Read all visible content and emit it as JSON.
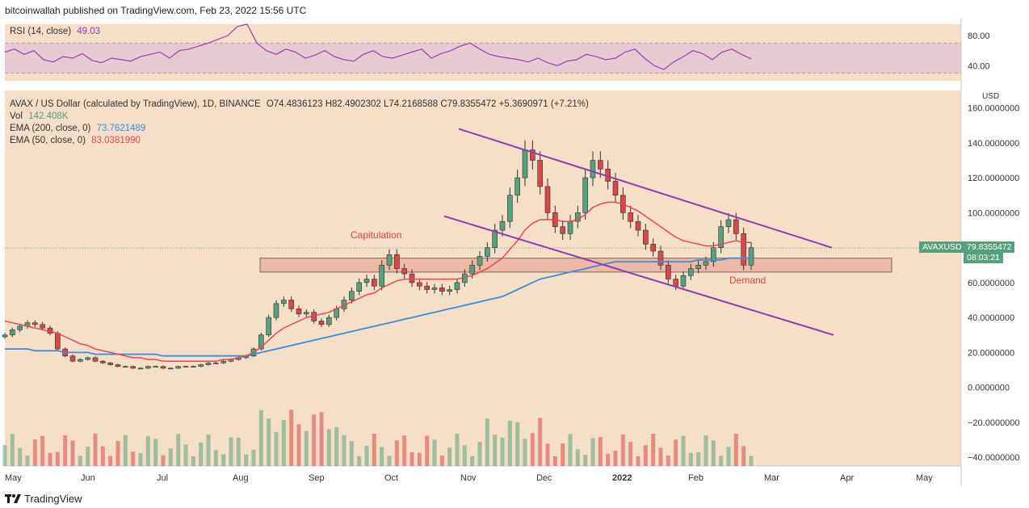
{
  "header": {
    "publisher": "bitcoinwallah published on TradingView.com, Feb 23, 2022 15:56 UTC"
  },
  "footer": {
    "brand": "TradingView",
    "logo": "tradingview-logo"
  },
  "rsi_legend": {
    "label": "RSI (14, close)",
    "value": "49.03"
  },
  "main_legend": {
    "title": "AVAX / US Dollar (calculated by TradingView), 1D, BINANCE",
    "ohlc": "O74.4836123  H82.4902302  L74.2168588  C79.8355472  +5.3690971 (+7.21%)",
    "vol_label": "Vol",
    "vol_value": "142.408K",
    "ema200_label": "EMA (200, close, 0)",
    "ema200_value": "73.7621489",
    "ema50_label": "EMA (50, close, 0)",
    "ema50_value": "83.0381990"
  },
  "price_tag": {
    "symbol": "AVAXUSD",
    "price": "79.8355472",
    "countdown": "08:03:21"
  },
  "annotations": {
    "capitulation": "Capitulation",
    "demand": "Demand"
  },
  "colors": {
    "background": "#f5dfc8",
    "up": "#57a07d",
    "down": "#d94848",
    "ema50": "#e8474f",
    "ema200": "#3b8de0",
    "rsi": "#9b3fb3",
    "channel": "#8b3fb0",
    "zone": "#e9a08f"
  },
  "chart_data": [
    {
      "type": "line",
      "name": "RSI (14, close)",
      "y_ticks": [
        "80.00",
        "40.00"
      ],
      "ylim": [
        20,
        95
      ],
      "band": [
        30,
        70
      ],
      "values": [
        58,
        62,
        55,
        60,
        48,
        45,
        52,
        50,
        56,
        47,
        44,
        50,
        48,
        46,
        52,
        55,
        58,
        50,
        60,
        62,
        66,
        70,
        75,
        80,
        92,
        95,
        70,
        60,
        55,
        62,
        58,
        50,
        54,
        60,
        52,
        48,
        46,
        55,
        60,
        52,
        50,
        54,
        58,
        62,
        50,
        56,
        60,
        66,
        70,
        62,
        55,
        52,
        50,
        48,
        45,
        50,
        44,
        40,
        46,
        48,
        55,
        52,
        48,
        50,
        58,
        62,
        50,
        40,
        35,
        45,
        52,
        60,
        56,
        48,
        58,
        62,
        55,
        49
      ]
    },
    {
      "type": "line",
      "name": "AVAX / US Dollar",
      "x_tick_labels": [
        "May",
        "Jun",
        "Jul",
        "Aug",
        "Sep",
        "Oct",
        "Nov",
        "Dec",
        "2022",
        "Feb",
        "Mar",
        "Apr",
        "May"
      ],
      "y_tick_labels": [
        "160.0000000",
        "140.0000000",
        "120.0000000",
        "100.0000000",
        "60.0000000",
        "40.0000000",
        "20.0000000",
        "0.0000000",
        "−20.0000000",
        "−40.0000000"
      ],
      "y_ticks": [
        160,
        140,
        120,
        100,
        60,
        40,
        20,
        0,
        -20,
        -40
      ],
      "ylim": [
        -45,
        170
      ],
      "axis_unit": "USD",
      "last_price": 79.8355472,
      "close": [
        30,
        33,
        35,
        37,
        36,
        34,
        31,
        22,
        18,
        15,
        16,
        17,
        15,
        14,
        13,
        12,
        12,
        11,
        11,
        12,
        12,
        11,
        11,
        12,
        12,
        12,
        13,
        14,
        14,
        15,
        16,
        17,
        18,
        22,
        30,
        40,
        48,
        50,
        45,
        42,
        43,
        38,
        36,
        40,
        45,
        50,
        55,
        60,
        62,
        58,
        70,
        76,
        68,
        65,
        60,
        58,
        56,
        57,
        55,
        56,
        60,
        65,
        70,
        75,
        80,
        90,
        95,
        110,
        120,
        136,
        130,
        115,
        100,
        92,
        88,
        95,
        100,
        120,
        130,
        125,
        118,
        110,
        100,
        95,
        90,
        82,
        78,
        70,
        62,
        58,
        64,
        68,
        70,
        72,
        80,
        92,
        96,
        88,
        70,
        80
      ],
      "ema50": [
        38,
        37,
        36,
        35,
        34,
        33,
        32,
        31,
        29,
        27,
        25,
        24,
        22,
        21,
        20,
        19,
        18,
        17,
        17,
        16,
        16,
        15,
        15,
        15,
        15,
        15,
        15,
        15,
        15,
        16,
        16,
        17,
        18,
        20,
        23,
        27,
        31,
        34,
        36,
        38,
        40,
        41,
        42,
        43,
        45,
        47,
        49,
        51,
        53,
        54,
        57,
        59,
        61,
        62,
        62,
        62,
        62,
        62,
        62,
        62,
        62,
        63,
        64,
        66,
        68,
        71,
        74,
        79,
        84,
        90,
        94,
        96,
        96,
        96,
        95,
        95,
        96,
        99,
        103,
        105,
        106,
        106,
        105,
        103,
        101,
        98,
        95,
        92,
        89,
        86,
        84,
        83,
        82,
        81,
        81,
        82,
        83,
        84,
        83,
        83
      ],
      "ema200": [
        22,
        22,
        22,
        22,
        21,
        21,
        21,
        21,
        20,
        20,
        20,
        20,
        19,
        19,
        19,
        19,
        19,
        19,
        19,
        19,
        19,
        18,
        18,
        18,
        18,
        18,
        18,
        18,
        18,
        18,
        18,
        18,
        18,
        19,
        20,
        21,
        22,
        23,
        24,
        25,
        26,
        27,
        28,
        29,
        30,
        31,
        32,
        33,
        34,
        35,
        36,
        37,
        38,
        39,
        40,
        41,
        42,
        43,
        44,
        45,
        46,
        47,
        48,
        49,
        50,
        51,
        52,
        54,
        56,
        58,
        60,
        62,
        63,
        64,
        65,
        66,
        67,
        68,
        69,
        70,
        71,
        72,
        72,
        72,
        72,
        72,
        72,
        72,
        72,
        72,
        72,
        72,
        73,
        73,
        73,
        73,
        74,
        74,
        74,
        74
      ],
      "demand_zone": [
        66,
        74
      ],
      "channel_upper": [
        [
          0.49,
          148
        ],
        [
          1.0,
          80
        ]
      ],
      "channel_lower": [
        [
          0.47,
          98
        ],
        [
          1.0,
          30
        ]
      ]
    }
  ]
}
